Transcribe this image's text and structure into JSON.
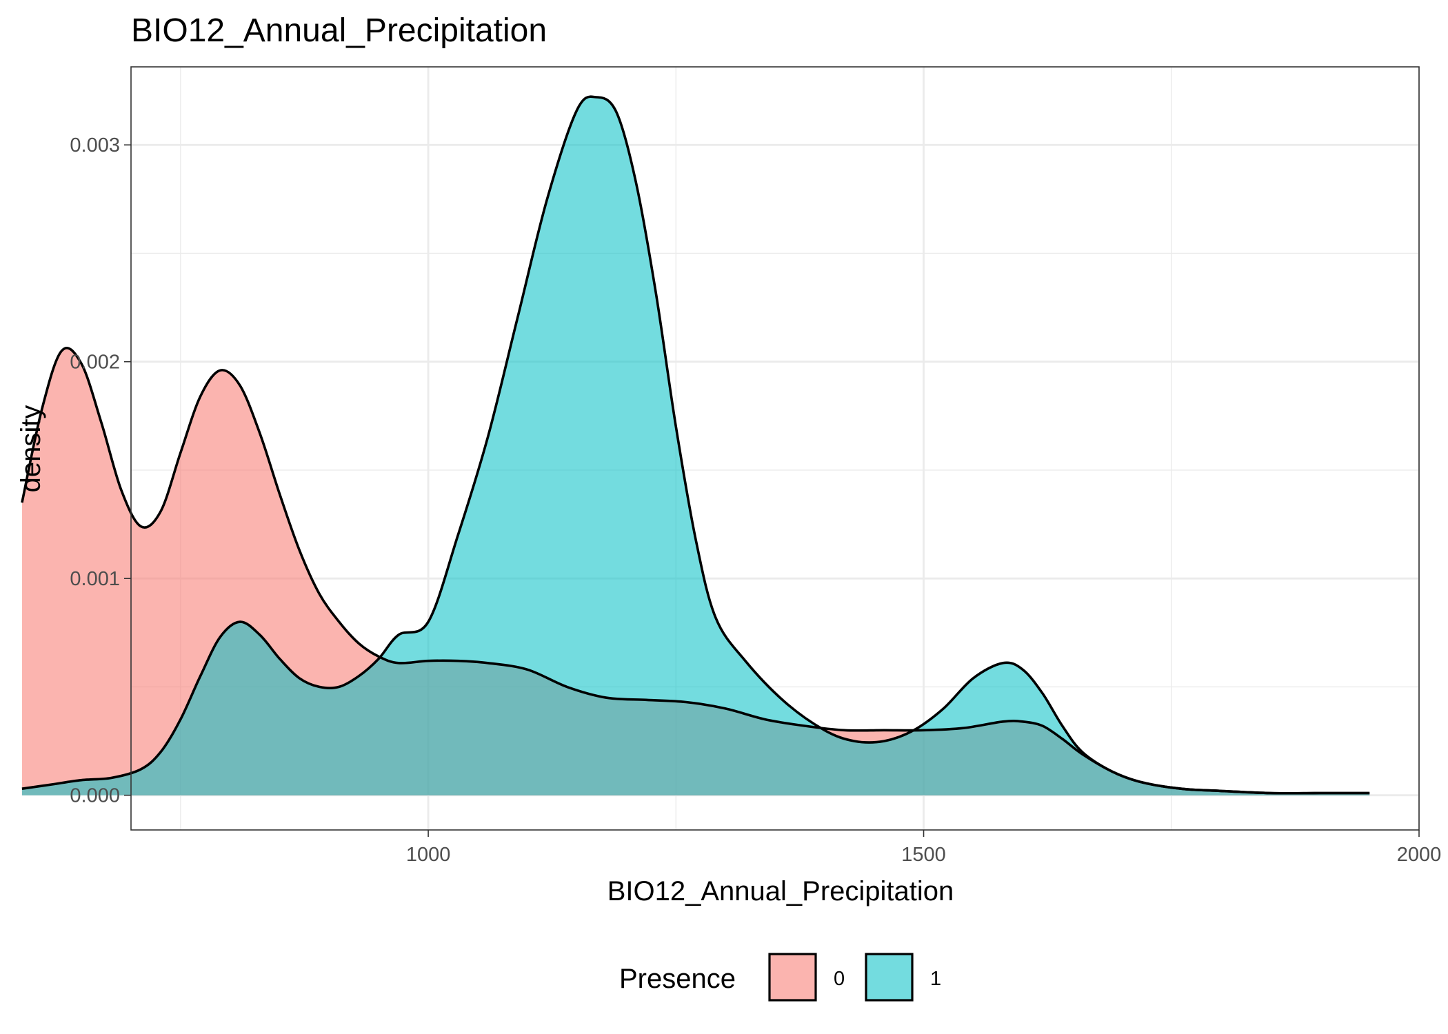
{
  "chart_data": {
    "type": "area",
    "title": "BIO12_Annual_Precipitation",
    "xlabel": "BIO12_Annual_Precipitation",
    "ylabel": "density",
    "xlim": [
      700,
      2000
    ],
    "ylim": [
      -0.00016,
      0.00336
    ],
    "x_ticks": [
      {
        "value": 1000,
        "label": "1000"
      },
      {
        "value": 1500,
        "label": "1500"
      },
      {
        "value": 2000,
        "label": "2000"
      }
    ],
    "y_ticks": [
      {
        "value": 0.0,
        "label": "0.000"
      },
      {
        "value": 0.001,
        "label": "0.001"
      },
      {
        "value": 0.002,
        "label": "0.002"
      },
      {
        "value": 0.003,
        "label": "0.003"
      }
    ],
    "grid": true,
    "legend": {
      "title": "Presence",
      "position": "bottom"
    },
    "series": [
      {
        "name": "0",
        "color": "#F8766D",
        "x": [
          590,
          610,
          630,
          650,
          670,
          690,
          710,
          730,
          750,
          770,
          790,
          810,
          830,
          850,
          870,
          890,
          910,
          930,
          950,
          970,
          1000,
          1030,
          1060,
          1100,
          1140,
          1180,
          1220,
          1260,
          1300,
          1340,
          1380,
          1420,
          1460,
          1500,
          1540,
          1580,
          1600,
          1620,
          1640,
          1660,
          1690,
          1720,
          1760,
          1800,
          1850,
          1900,
          1950
        ],
        "y": [
          0.00135,
          0.00178,
          0.00205,
          0.00199,
          0.00172,
          0.00141,
          0.00124,
          0.00131,
          0.00158,
          0.00184,
          0.00196,
          0.00189,
          0.00167,
          0.00139,
          0.00113,
          0.00093,
          0.0008,
          0.0007,
          0.00064,
          0.00061,
          0.00062,
          0.00062,
          0.00061,
          0.00058,
          0.0005,
          0.00045,
          0.00044,
          0.00043,
          0.0004,
          0.00035,
          0.00032,
          0.0003,
          0.0003,
          0.0003,
          0.00031,
          0.00034,
          0.00034,
          0.00032,
          0.00026,
          0.00019,
          0.00011,
          6e-05,
          3e-05,
          2e-05,
          1e-05,
          1e-05,
          1e-05
        ]
      },
      {
        "name": "1",
        "color": "#00BFC4",
        "x": [
          590,
          620,
          650,
          680,
          710,
          730,
          750,
          770,
          790,
          810,
          830,
          850,
          870,
          890,
          910,
          930,
          950,
          970,
          1000,
          1030,
          1060,
          1090,
          1120,
          1150,
          1170,
          1190,
          1210,
          1230,
          1250,
          1270,
          1290,
          1320,
          1360,
          1400,
          1430,
          1460,
          1490,
          1520,
          1550,
          1580,
          1600,
          1620,
          1640,
          1660,
          1690,
          1720,
          1760,
          1800,
          1850,
          1900,
          1950
        ],
        "y": [
          3e-05,
          5e-05,
          7e-05,
          8e-05,
          0.00012,
          0.0002,
          0.00035,
          0.00055,
          0.00073,
          0.0008,
          0.00074,
          0.00063,
          0.00054,
          0.0005,
          0.0005,
          0.00055,
          0.00063,
          0.00074,
          0.0008,
          0.0012,
          0.00165,
          0.0022,
          0.00275,
          0.00316,
          0.00322,
          0.00315,
          0.00282,
          0.00231,
          0.0017,
          0.00118,
          0.00082,
          0.00062,
          0.00043,
          0.0003,
          0.00025,
          0.00025,
          0.0003,
          0.0004,
          0.00054,
          0.00061,
          0.00058,
          0.00047,
          0.00032,
          0.0002,
          0.00011,
          6e-05,
          3e-05,
          2e-05,
          1e-05,
          1e-05,
          1e-05
        ]
      }
    ]
  }
}
